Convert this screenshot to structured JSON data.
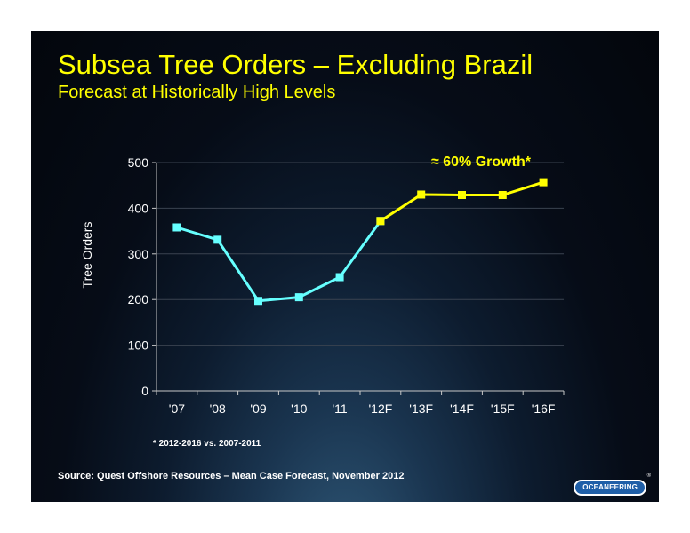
{
  "slide": {
    "title": "Subsea Tree Orders – Excluding Brazil",
    "subtitle": "Forecast at Historically High Levels",
    "source": "Source:  Quest Offshore Resources – Mean Case Forecast, November 2012",
    "logo_text": "OCEANEERING",
    "logo_mark": "®"
  },
  "colors": {
    "title": "#ffff00",
    "historical_series": "#66ffff",
    "forecast_series": "#ffff00",
    "axis": "#c8c8c8"
  },
  "chart_data": {
    "type": "line",
    "categories": [
      "'07",
      "'08",
      "'09",
      "'10",
      "'11",
      "'12F",
      "'13F",
      "'14F",
      "'15F",
      "'16F"
    ],
    "series": [
      {
        "values": [
          358,
          331,
          197,
          205,
          249,
          372,
          null,
          null,
          null,
          null
        ],
        "color": "#66ffff",
        "marker": "square"
      },
      {
        "values": [
          null,
          null,
          null,
          null,
          null,
          372,
          430,
          429,
          429,
          457
        ],
        "color": "#ffff00",
        "marker": "square"
      }
    ],
    "ylabel": "Tree Orders",
    "ylim": [
      0,
      500
    ],
    "yticks": [
      0,
      100,
      200,
      300,
      400,
      500
    ],
    "annotation": "≈ 60% Growth*",
    "footnote": "* 2012-2016 vs. 2007-2011",
    "grid": true
  }
}
